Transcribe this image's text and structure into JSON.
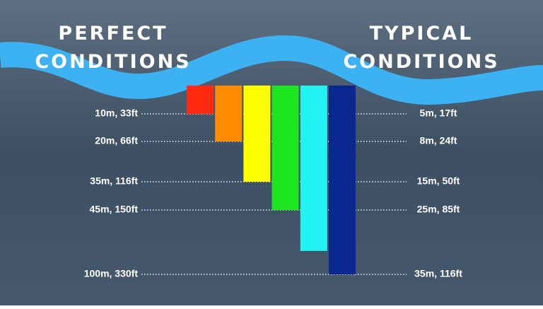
{
  "chart_data": {
    "type": "bar",
    "title_left": "PERFECT CONDITIONS",
    "title_right": "TYPICAL CONDITIONS",
    "categories": [
      null,
      null,
      null,
      null,
      null,
      null
    ],
    "series": [
      {
        "values": [
          10,
          20,
          35,
          45,
          80,
          100
        ],
        "colors": [
          "#ff2a10",
          "#ff8c00",
          "#ffff00",
          "#1ee61e",
          "#22f2f2",
          "#0a2890"
        ]
      }
    ],
    "ylim": [
      0,
      100
    ],
    "yticks": [
      {
        "value": 10,
        "label": "10m, 33ft"
      },
      {
        "value": 20,
        "label": "20m, 66ft"
      },
      {
        "value": 35,
        "label": "35m, 116ft"
      },
      {
        "value": 45,
        "label": "45m, 150ft"
      },
      {
        "value": 100,
        "label": "100m, 330ft"
      }
    ],
    "y2lim": [
      0,
      35
    ],
    "y2ticks": [
      {
        "value": 5,
        "label": "5m, 17ft"
      },
      {
        "value": 8,
        "label": "8m, 24ft"
      },
      {
        "value": 15,
        "label": "15m, 50ft"
      },
      {
        "value": 25,
        "label": "25m, 85ft"
      },
      {
        "value": 35,
        "label": "35m, 116ft"
      }
    ]
  }
}
